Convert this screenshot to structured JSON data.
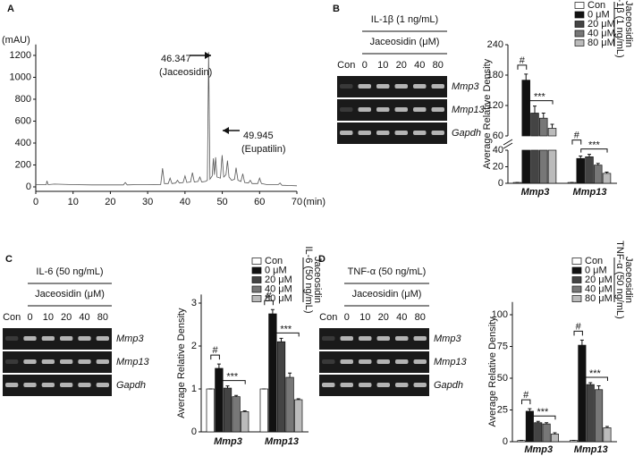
{
  "panel_labels": [
    "A",
    "B",
    "C",
    "D"
  ],
  "gels": [
    {
      "treatment": "IL-1β (1 ng/mL)",
      "compound": "Jaceosidin (μM)",
      "lanes": [
        "Con",
        "0",
        "10",
        "20",
        "40",
        "80"
      ],
      "rows": [
        "Mmp3",
        "Mmp13",
        "Gapdh"
      ]
    },
    {
      "treatment": "IL-6 (50 ng/mL)",
      "compound": "Jaceosidin (μM)",
      "lanes": [
        "Con",
        "0",
        "10",
        "20",
        "40",
        "80"
      ],
      "rows": [
        "Mmp3",
        "Mmp13",
        "Gapdh"
      ]
    },
    {
      "treatment": "TNF-α (50 ng/mL)",
      "compound": "Jaceosidin (μM)",
      "lanes": [
        "Con",
        "0",
        "10",
        "20",
        "40",
        "80"
      ],
      "rows": [
        "Mmp3",
        "Mmp13",
        "Gapdh"
      ]
    }
  ],
  "chart_data": [
    {
      "type": "line",
      "y_label": "(mAU)",
      "x_label": "(min)",
      "x": [
        0,
        2,
        2.8,
        3,
        3.3,
        5,
        10,
        15,
        20,
        23.5,
        24,
        24.5,
        27,
        30,
        33.5,
        34,
        34.5,
        35.5,
        36,
        36.5,
        37.5,
        38,
        38.5,
        39.5,
        40,
        40.5,
        41.5,
        42,
        42.5,
        43.5,
        44,
        44.5,
        45.5,
        46,
        46.35,
        46.7,
        47.3,
        47.6,
        47.9,
        48.2,
        48.6,
        49.5,
        49.95,
        50.4,
        51,
        51.4,
        51.8,
        52.5,
        53.3,
        53.7,
        54.2,
        55,
        55.5,
        56,
        57,
        57.5,
        58,
        59.5,
        60,
        60.5,
        62,
        65,
        65.5,
        66,
        68,
        70
      ],
      "values": [
        20,
        20,
        20,
        55,
        20,
        25,
        20,
        18,
        18,
        18,
        40,
        18,
        20,
        20,
        22,
        170,
        30,
        30,
        80,
        30,
        35,
        60,
        35,
        40,
        100,
        40,
        45,
        130,
        45,
        50,
        90,
        45,
        50,
        60,
        1230,
        70,
        100,
        260,
        110,
        270,
        90,
        80,
        290,
        90,
        110,
        240,
        90,
        60,
        70,
        175,
        60,
        50,
        120,
        40,
        35,
        60,
        30,
        30,
        80,
        30,
        20,
        20,
        35,
        15,
        12,
        10
      ],
      "color": "#555555",
      "xlim": [
        0,
        70
      ],
      "xticks": [
        0,
        10,
        20,
        30,
        40,
        50,
        60,
        70
      ],
      "ylim": [
        0,
        1300
      ],
      "yticks": [
        0,
        200,
        400,
        600,
        800,
        1000,
        1200
      ],
      "annotations": [
        {
          "text": "46.347",
          "compound": "(Jaceosidin)"
        },
        {
          "text": "49.945",
          "compound": "(Eupatilin)"
        }
      ]
    },
    {
      "type": "bar",
      "y_label": "Average Relative Density",
      "categories": [
        "Mmp3",
        "Mmp13"
      ],
      "series": [
        {
          "name": "Con",
          "color": "#ffffff",
          "values": [
            1,
            1
          ],
          "errors": [
            0,
            0
          ]
        },
        {
          "name": "0 μM",
          "color": "#111111",
          "values": [
            170,
            30
          ],
          "errors": [
            12,
            3
          ]
        },
        {
          "name": "20 μM",
          "color": "#444444",
          "values": [
            105,
            32
          ],
          "errors": [
            14,
            3
          ]
        },
        {
          "name": "40 μM",
          "color": "#777777",
          "values": [
            95,
            22
          ],
          "errors": [
            10,
            2
          ]
        },
        {
          "name": "80 μM",
          "color": "#bbbbbb",
          "values": [
            75,
            12
          ],
          "errors": [
            8,
            1.5
          ]
        }
      ],
      "legend_note": [
        "IL-1β (1 ng/mL)",
        "Jaceosidin"
      ],
      "significance": [
        [
          "#",
          "***"
        ],
        [
          "#",
          "***"
        ]
      ],
      "y_segments": [
        {
          "ylim": [
            0,
            40
          ],
          "yticks": [
            0,
            20,
            40
          ]
        },
        {
          "ylim": [
            60,
            240
          ],
          "yticks": [
            60,
            120,
            180,
            240
          ]
        }
      ]
    },
    {
      "type": "bar",
      "y_label": "Average Relative Density",
      "categories": [
        "Mmp3",
        "Mmp13"
      ],
      "series": [
        {
          "name": "Con",
          "color": "#ffffff",
          "values": [
            1,
            1
          ],
          "errors": [
            0,
            0
          ]
        },
        {
          "name": "0 μM",
          "color": "#111111",
          "values": [
            1.48,
            2.75
          ],
          "errors": [
            0.1,
            0.1
          ]
        },
        {
          "name": "20 μM",
          "color": "#444444",
          "values": [
            1.02,
            2.1
          ],
          "errors": [
            0.05,
            0.08
          ]
        },
        {
          "name": "40 μM",
          "color": "#777777",
          "values": [
            0.82,
            1.27
          ],
          "errors": [
            0.03,
            0.1
          ]
        },
        {
          "name": "80 μM",
          "color": "#bbbbbb",
          "values": [
            0.47,
            0.75
          ],
          "errors": [
            0.02,
            0.02
          ]
        }
      ],
      "legend_note": [
        "IL-6 (50 ng/mL)",
        "Jaceosidin"
      ],
      "significance": [
        [
          "#",
          "***"
        ],
        [
          "#",
          "***"
        ]
      ],
      "ylim": [
        0,
        3.2
      ],
      "yticks": [
        0,
        1,
        2,
        3
      ]
    },
    {
      "type": "bar",
      "y_label": "Average Relative Density",
      "categories": [
        "Mmp3",
        "Mmp13"
      ],
      "series": [
        {
          "name": "Con",
          "color": "#ffffff",
          "values": [
            1,
            1
          ],
          "errors": [
            0,
            0
          ]
        },
        {
          "name": "0 μM",
          "color": "#111111",
          "values": [
            24,
            76
          ],
          "errors": [
            2,
            4
          ]
        },
        {
          "name": "20 μM",
          "color": "#444444",
          "values": [
            15,
            45
          ],
          "errors": [
            1,
            1.5
          ]
        },
        {
          "name": "40 μM",
          "color": "#777777",
          "values": [
            14,
            41
          ],
          "errors": [
            1,
            3
          ]
        },
        {
          "name": "80 μM",
          "color": "#bbbbbb",
          "values": [
            6,
            11
          ],
          "errors": [
            1,
            1
          ]
        }
      ],
      "legend_note": [
        "TNF-α (50 ng/mL)",
        "Jaceosidin"
      ],
      "significance": [
        [
          "#",
          "***"
        ],
        [
          "#",
          "***"
        ]
      ],
      "ylim": [
        0,
        110
      ],
      "yticks": [
        0,
        25,
        50,
        75,
        100
      ]
    }
  ]
}
